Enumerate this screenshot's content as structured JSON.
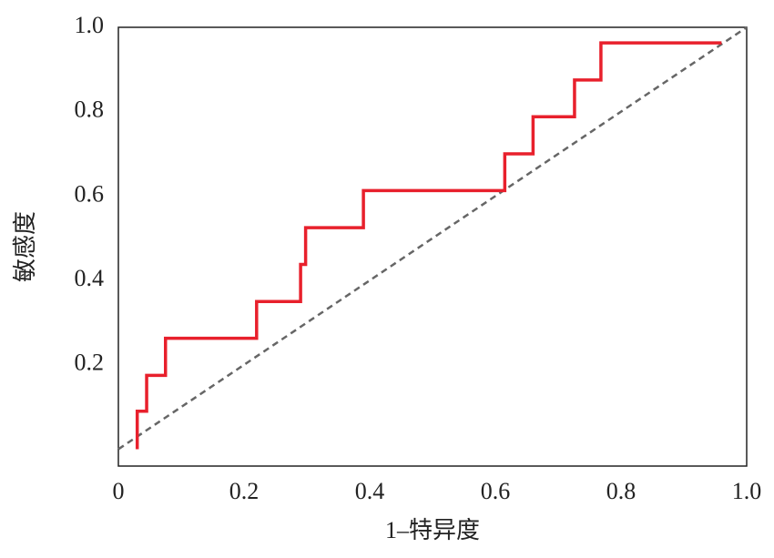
{
  "chart_data": {
    "type": "line",
    "xlabel": "1–特异度",
    "ylabel": "敏感度",
    "x": [
      0.03,
      0.03,
      0.045,
      0.045,
      0.075,
      0.075,
      0.22,
      0.22,
      0.29,
      0.29,
      0.298,
      0.298,
      0.39,
      0.39,
      0.615,
      0.615,
      0.66,
      0.66,
      0.726,
      0.726,
      0.768,
      0.768,
      0.96
    ],
    "values": [
      0,
      0.09,
      0.09,
      0.175,
      0.175,
      0.263,
      0.263,
      0.35,
      0.35,
      0.438,
      0.438,
      0.525,
      0.525,
      0.613,
      0.613,
      0.7,
      0.7,
      0.788,
      0.788,
      0.875,
      0.875,
      0.963,
      0.963
    ],
    "color": "#e8202c",
    "reference_color": "#666666",
    "xlim": [
      0,
      1
    ],
    "ylim": [
      -0.04,
      1
    ],
    "xticks": [
      0,
      {
        "value": 0.2,
        "label": "0.2"
      },
      {
        "value": 0.4,
        "label": "0.4"
      },
      {
        "value": 0.6,
        "label": "0.6"
      },
      {
        "value": 0.8,
        "label": "0.8"
      },
      {
        "value": 1,
        "label": "1.0"
      }
    ],
    "yticks": [
      {
        "value": 0.2,
        "label": "0.2"
      },
      {
        "value": 0.4,
        "label": "0.4"
      },
      {
        "value": 0.6,
        "label": "0.6"
      },
      {
        "value": 0.8,
        "label": "0.8"
      },
      {
        "value": 1,
        "label": "1.0"
      }
    ],
    "grid": false
  }
}
